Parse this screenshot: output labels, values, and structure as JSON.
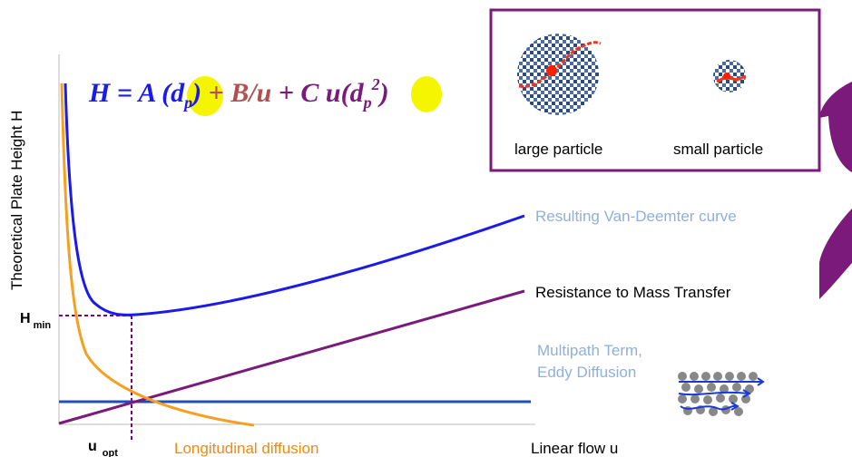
{
  "y_axis_label": "Theoretical Plate Height H",
  "x_axis_label": "Linear flow u",
  "equation": {
    "h_part": "H = A ",
    "a_open": "(d",
    "a_sub": "p",
    "a_close": ")",
    "plus1": " + ",
    "b_part": "B/u",
    "plus2": " + ",
    "c_part": "C u(",
    "c_d": "d",
    "c_sub": "p",
    "c_sup": "2",
    "c_close": ")"
  },
  "h_min": {
    "symbol": "H",
    "subscript": "min"
  },
  "u_opt": {
    "symbol": "u",
    "subscript": "opt"
  },
  "curves": {
    "van_deemter": "Resulting Van-Deemter curve",
    "mass_transfer": "Resistance to Mass Transfer",
    "multipath_line1": "Multipath Term,",
    "multipath_line2": "Eddy Diffusion",
    "longitudinal": "Longitudinal diffusion"
  },
  "inset": {
    "large": "large particle",
    "small": "small particle"
  }
}
